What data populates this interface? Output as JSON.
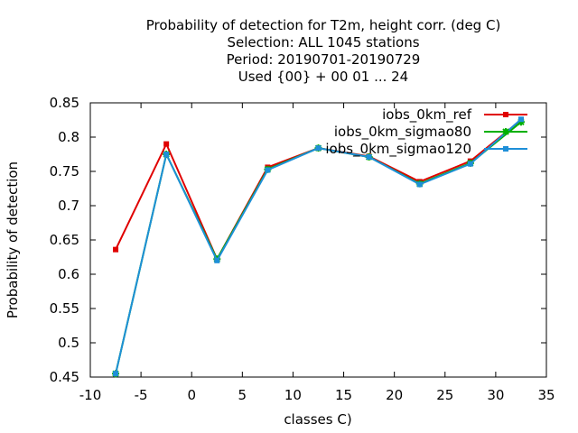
{
  "chart_data": {
    "type": "line",
    "title_lines": [
      "Probability of detection  for T2m, height corr. (deg C)",
      "Selection: ALL   1045 stations",
      "Period: 20190701-20190729",
      "Used {00} + 00 01 ... 24"
    ],
    "xlabel": "classes C)",
    "ylabel": "Probability of detection",
    "xlim": [
      -10,
      35
    ],
    "ylim": [
      0.45,
      0.85
    ],
    "xticks": [
      -10,
      -5,
      0,
      5,
      10,
      15,
      20,
      25,
      30,
      35
    ],
    "yticks": [
      0.45,
      0.5,
      0.55,
      0.6,
      0.65,
      0.7,
      0.75,
      0.8,
      0.85
    ],
    "legend_position": "top-right",
    "grid": false,
    "x": [
      -7.5,
      -2.5,
      2.5,
      7.5,
      12.5,
      17.5,
      22.5,
      27.5,
      32.5
    ],
    "series": [
      {
        "name": "iobs_0km_ref",
        "color": "#e00000",
        "marker": "square",
        "values": [
          0.636,
          0.79,
          0.622,
          0.756,
          0.784,
          0.772,
          0.735,
          0.765,
          0.825
        ]
      },
      {
        "name": "iobs_0km_sigmao80",
        "color": "#00b000",
        "marker": "star",
        "values": [
          0.455,
          0.775,
          0.622,
          0.753,
          0.784,
          0.771,
          0.732,
          0.762,
          0.822
        ]
      },
      {
        "name": "iobs_0km_sigmao120",
        "color": "#1e8fd8",
        "marker": "square",
        "values": [
          0.455,
          0.775,
          0.62,
          0.752,
          0.784,
          0.771,
          0.731,
          0.761,
          0.826
        ]
      }
    ]
  }
}
